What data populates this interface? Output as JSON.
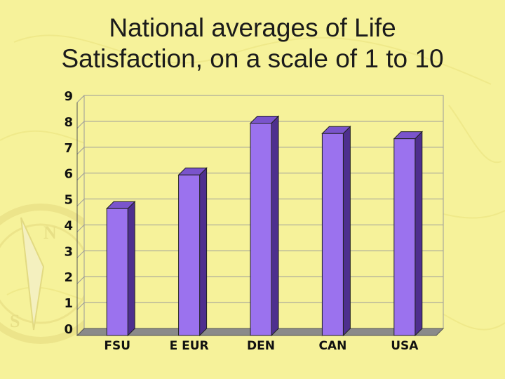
{
  "slide": {
    "title_line1": "National averages of Life",
    "title_line2": "Satisfaction, on a scale of 1 to 10"
  },
  "chart_data": {
    "type": "bar",
    "title": "National averages of Life Satisfaction, on a scale of 1 to 10",
    "categories": [
      "FSU",
      "E EUR",
      "DEN",
      "CAN",
      "USA"
    ],
    "values": [
      4.9,
      6.2,
      8.2,
      7.8,
      7.6
    ],
    "xlabel": "",
    "ylabel": "",
    "ylim": [
      0,
      9
    ],
    "yticks": [
      0,
      1,
      2,
      3,
      4,
      5,
      6,
      7,
      8,
      9
    ],
    "grid": true,
    "legend": "none",
    "three_d": true,
    "colors": {
      "bar_front": "#9b72ee",
      "bar_top": "#7a54cc",
      "bar_side": "#4e2f8e",
      "plot_bg": "#f6f29a",
      "floor": "#8a8a8a",
      "gridline": "#9a9a9a"
    }
  },
  "decor": {
    "compass_icon_letters": [
      "N",
      "S"
    ]
  }
}
